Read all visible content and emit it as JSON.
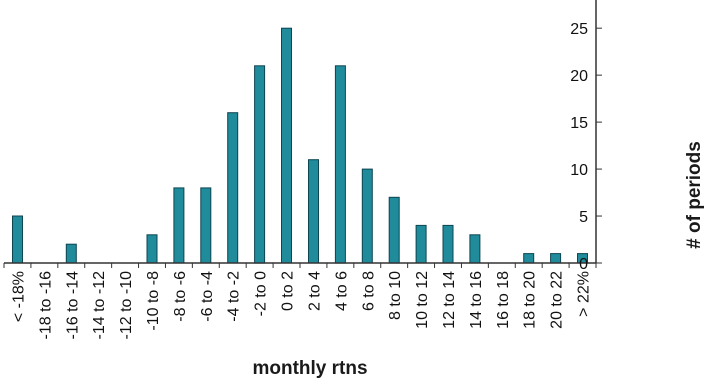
{
  "chart_data": {
    "type": "bar",
    "categories": [
      "< -18%",
      "-18 to -16",
      "-16 to -14",
      "-14 to -12",
      "-12 to -10",
      "-10 to -8",
      "-8 to -6",
      "-6 to -4",
      "-4 to -2",
      "-2 to 0",
      "0 to 2",
      "2 to 4",
      "4 to 6",
      "6 to 8",
      "8 to 10",
      "10 to 12",
      "12 to 14",
      "14 to 16",
      "16 to 18",
      "18 to 20",
      "20 to 22",
      "> 22%"
    ],
    "values": [
      5,
      0,
      2,
      0,
      0,
      3,
      8,
      8,
      16,
      21,
      25,
      11,
      21,
      10,
      7,
      4,
      4,
      3,
      0,
      1,
      1,
      1
    ],
    "title": "",
    "xlabel": "monthly rtns",
    "ylabel": "# of periods",
    "ylim": [
      0,
      28
    ],
    "yticks": [
      0,
      5,
      10,
      15,
      20,
      25
    ],
    "y_axis_side": "right",
    "grid": false,
    "colors": {
      "bar_fill": "#1f8b9b",
      "bar_stroke": "#0d4550",
      "axis": "#333333",
      "text": "#111111"
    }
  }
}
